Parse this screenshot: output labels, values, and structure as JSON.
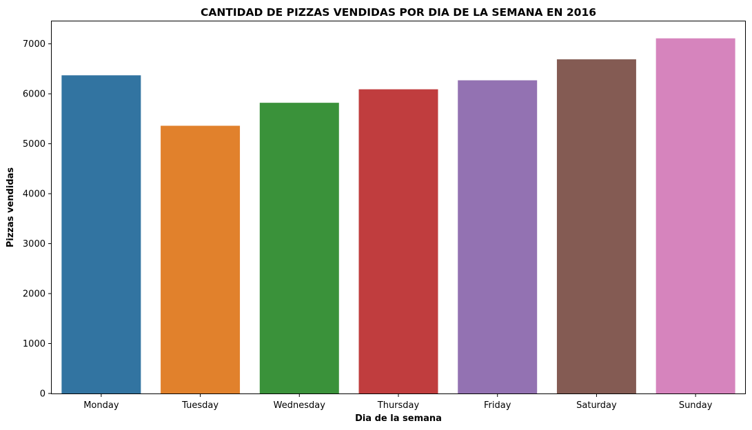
{
  "chart_data": {
    "type": "bar",
    "title": "CANTIDAD DE PIZZAS VENDIDAS POR DIA DE LA SEMANA EN 2016",
    "xlabel": "Dia de la semana",
    "ylabel": "Pizzas vendidas",
    "categories": [
      "Monday",
      "Tuesday",
      "Wednesday",
      "Thursday",
      "Friday",
      "Saturday",
      "Sunday"
    ],
    "values": [
      6370,
      5360,
      5820,
      6090,
      6270,
      6690,
      7110
    ],
    "colors": [
      "#3274a1",
      "#e1812c",
      "#3a923a",
      "#c03d3e",
      "#9372b2",
      "#845b53",
      "#d684bd"
    ],
    "ylim": [
      0,
      7450
    ],
    "yticks": [
      0,
      1000,
      2000,
      3000,
      4000,
      5000,
      6000,
      7000
    ],
    "ytick_labels": [
      "0",
      "1000",
      "2000",
      "3000",
      "4000",
      "5000",
      "6000",
      "7000"
    ],
    "grid": false,
    "legend": "none"
  }
}
